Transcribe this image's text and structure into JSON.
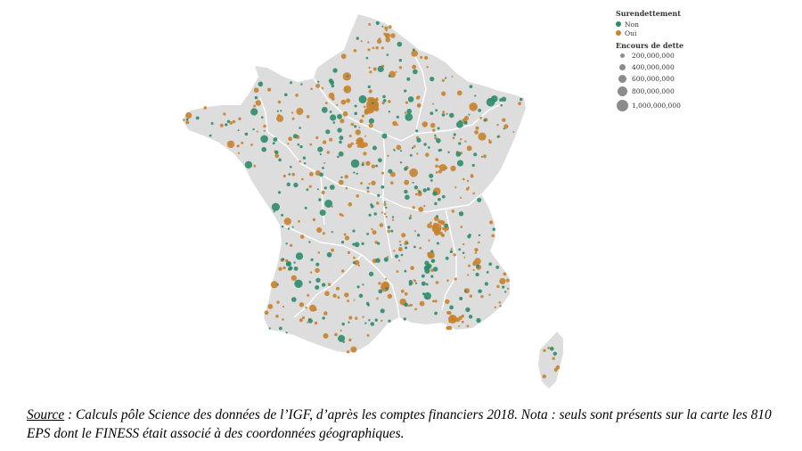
{
  "legend": {
    "status_title": "Surendettement",
    "status_items": [
      {
        "label": "Non",
        "color": "#2e8b6b"
      },
      {
        "label": "Oui",
        "color": "#c8822e"
      }
    ],
    "size_title": "Encours de dette",
    "size_items": [
      {
        "label": "200,000,000",
        "value": 200000000
      },
      {
        "label": "400,000,000",
        "value": 400000000
      },
      {
        "label": "600,000,000",
        "value": 600000000
      },
      {
        "label": "800,000,000",
        "value": 800000000
      },
      {
        "label": "1,000,000,000",
        "value": 1000000000
      }
    ]
  },
  "map": {
    "land_color": "#dddddd",
    "border_color": "#ffffff",
    "regions": [
      "France métropolitaine",
      "Corse"
    ]
  },
  "caption": {
    "source_label": "Source",
    "text": " : Calculs pôle Science des données de l’IGF, d’après les comptes financiers 2018. Nota : seuls sont présents sur la carte les 810 EPS dont le FINESS était associé à des coordonnées géographiques."
  }
}
